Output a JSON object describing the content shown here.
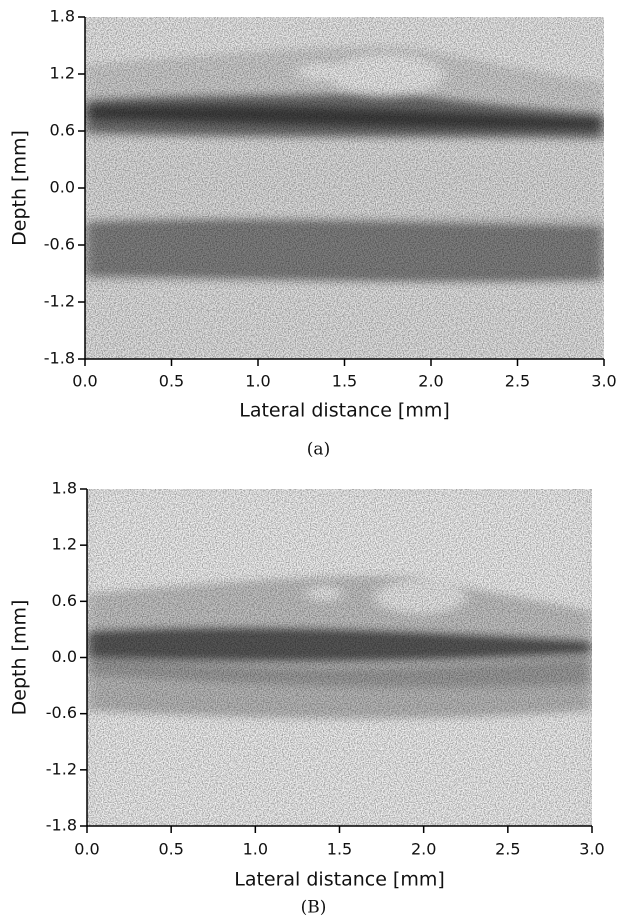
{
  "chart_data": [
    {
      "type": "image",
      "x_label": "Lateral distance [mm]",
      "y_label": "Depth [mm]",
      "caption": "(a)",
      "xlim": [
        0,
        3
      ],
      "ylim": [
        -1.8,
        1.8
      ],
      "xticks": [
        {
          "value": 0,
          "label": "0.0"
        },
        0.5,
        {
          "value": 1,
          "label": "1.0"
        },
        1.5,
        {
          "value": 2,
          "label": "2.0"
        },
        2.5,
        {
          "value": 3,
          "label": "3.0"
        }
      ],
      "yticks": [
        -1.8,
        -1.2,
        -0.6,
        {
          "value": 0,
          "label": "0.0"
        },
        0.6,
        1.2,
        1.8
      ]
    },
    {
      "type": "image",
      "x_label": "Lateral distance [mm]",
      "y_label": "Depth [mm]",
      "caption": "(B)",
      "xlim": [
        0,
        3
      ],
      "ylim": [
        -1.8,
        1.8
      ],
      "xticks": [
        {
          "value": 0,
          "label": "0.0"
        },
        0.5,
        {
          "value": 1,
          "label": "1.0"
        },
        1.5,
        {
          "value": 2,
          "label": "2.0"
        },
        2.5,
        {
          "value": 3,
          "label": "3.0"
        }
      ],
      "yticks": [
        -1.8,
        -1.2,
        -0.6,
        {
          "value": 0,
          "label": "0.0"
        },
        0.6,
        1.2,
        1.8
      ]
    }
  ]
}
